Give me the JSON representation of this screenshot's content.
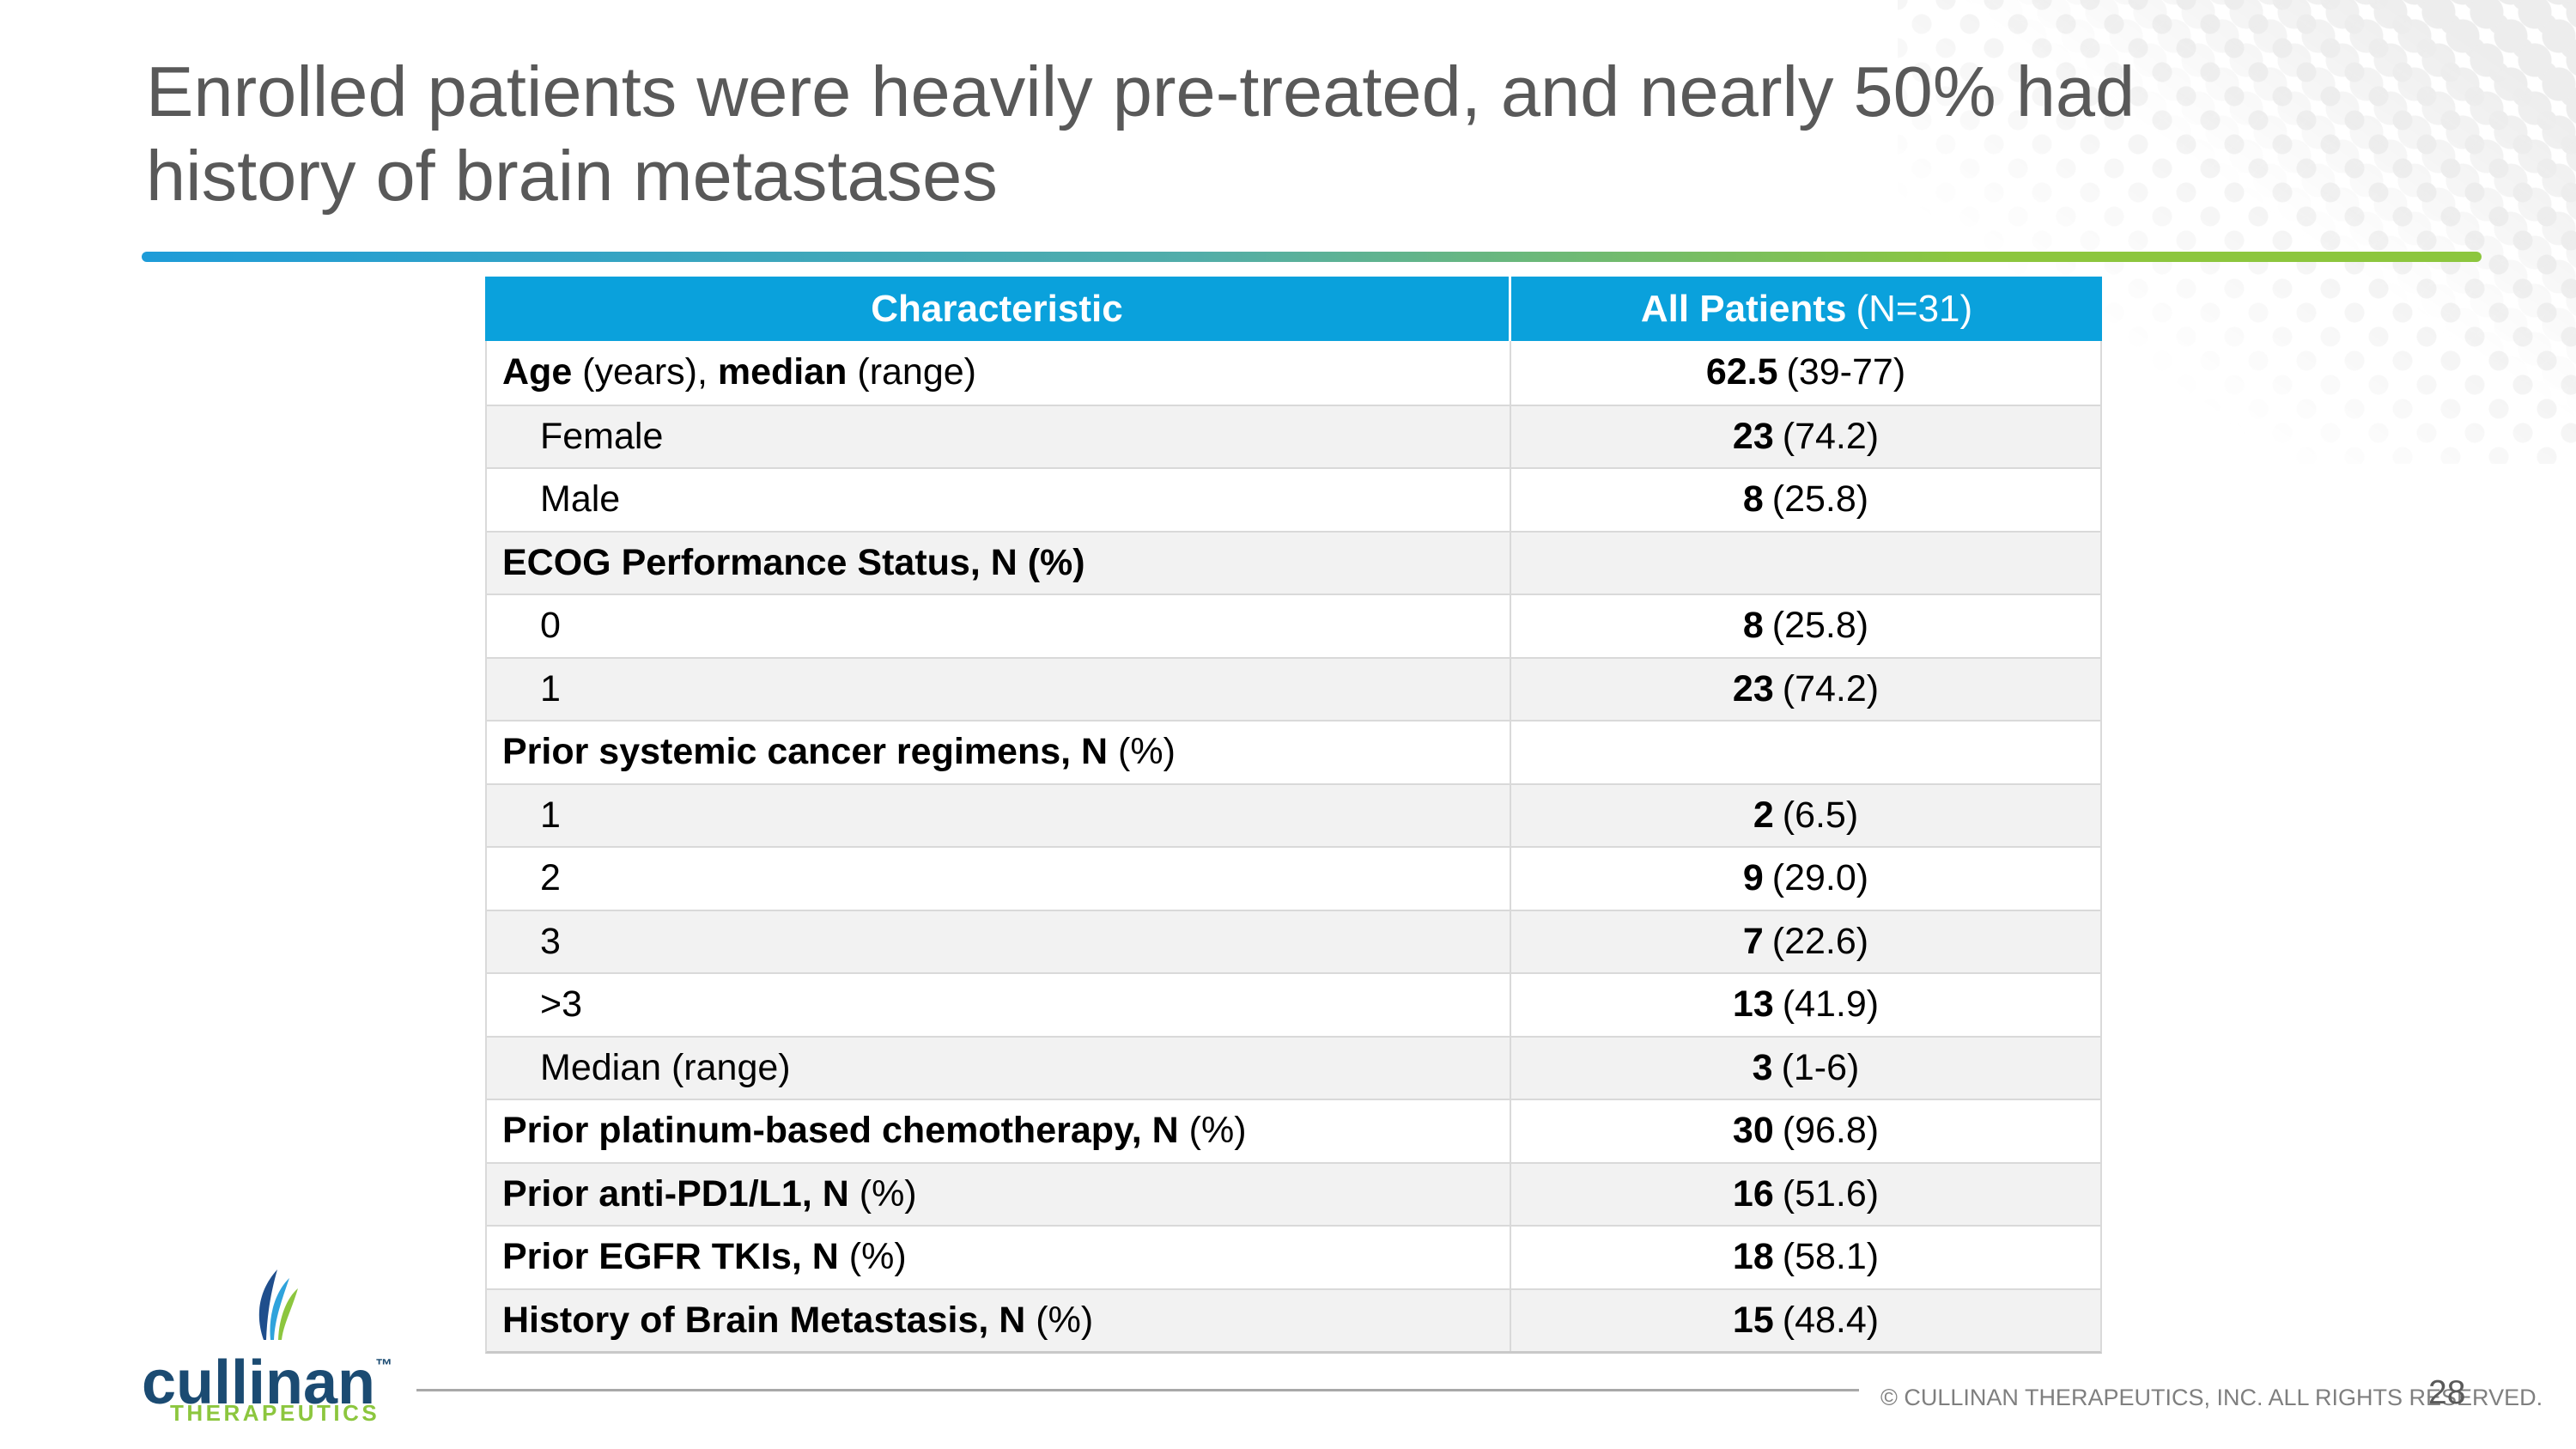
{
  "title": {
    "line1": "Enrolled patients were heavily pre-treated, and nearly 50% had",
    "line2": "history of brain metastases"
  },
  "colors": {
    "header_blue": "#0AA1DC",
    "alt_row": "#F2F2F2",
    "border_gray": "#D9D9D9",
    "title_gray": "#595959",
    "footer_gray": "#7F7F7F",
    "navy": "#1B4B72",
    "green": "#8CC63E",
    "grad_blue": "#1E9CD8",
    "dot_gray": "#EDEDED"
  },
  "table": {
    "header": {
      "col1": "Characteristic",
      "col2_bold": "All Patients",
      "col2_regular": "(N=31)"
    },
    "rows": [
      {
        "parts": [
          {
            "t": "Age",
            "b": true
          },
          {
            "t": " (years), ",
            "b": false
          },
          {
            "t": "median",
            "b": true
          },
          {
            "t": " (range)",
            "b": false
          }
        ],
        "num": "62.5",
        "paren": "(39-77)",
        "indent": false
      },
      {
        "parts": [
          {
            "t": "Female",
            "b": false
          }
        ],
        "num": "23",
        "paren": "(74.2)",
        "indent": true
      },
      {
        "parts": [
          {
            "t": "Male",
            "b": false
          }
        ],
        "num": "8",
        "paren": "(25.8)",
        "indent": true
      },
      {
        "parts": [
          {
            "t": "ECOG Performance Status, N (%)",
            "b": true
          }
        ],
        "num": "",
        "paren": "",
        "indent": false
      },
      {
        "parts": [
          {
            "t": "0",
            "b": false
          }
        ],
        "num": "8",
        "paren": "(25.8)",
        "indent": true
      },
      {
        "parts": [
          {
            "t": "1",
            "b": false
          }
        ],
        "num": "23",
        "paren": "(74.2)",
        "indent": true
      },
      {
        "parts": [
          {
            "t": "Prior systemic cancer regimens, N ",
            "b": true
          },
          {
            "t": "(%)",
            "b": false
          }
        ],
        "num": "",
        "paren": "",
        "indent": false
      },
      {
        "parts": [
          {
            "t": "1",
            "b": false
          }
        ],
        "num": "2",
        "paren": "(6.5)",
        "indent": true
      },
      {
        "parts": [
          {
            "t": "2",
            "b": false
          }
        ],
        "num": "9",
        "paren": "(29.0)",
        "indent": true
      },
      {
        "parts": [
          {
            "t": "3",
            "b": false
          }
        ],
        "num": "7",
        "paren": "(22.6)",
        "indent": true
      },
      {
        "parts": [
          {
            "t": ">3",
            "b": false
          }
        ],
        "num": "13",
        "paren": "(41.9)",
        "indent": true
      },
      {
        "parts": [
          {
            "t": "Median (range)",
            "b": false
          }
        ],
        "num": "3",
        "paren": "(1-6)",
        "indent": true
      },
      {
        "parts": [
          {
            "t": "Prior platinum-based chemotherapy, N ",
            "b": true
          },
          {
            "t": "(%)",
            "b": false
          }
        ],
        "num": "30",
        "paren": "(96.8)",
        "indent": false
      },
      {
        "parts": [
          {
            "t": "Prior anti-PD1/L1, N ",
            "b": true
          },
          {
            "t": "(%)",
            "b": false
          }
        ],
        "num": "16",
        "paren": "(51.6)",
        "indent": false
      },
      {
        "parts": [
          {
            "t": "Prior EGFR TKIs, N ",
            "b": true
          },
          {
            "t": "(%)",
            "b": false
          }
        ],
        "num": "18",
        "paren": "(58.1)",
        "indent": false
      },
      {
        "parts": [
          {
            "t": "History of Brain Metastasis, N ",
            "b": true
          },
          {
            "t": "(%)",
            "b": false
          }
        ],
        "num": "15",
        "paren": "(48.4)",
        "indent": false
      }
    ]
  },
  "logo": {
    "wordmark": "cullinan",
    "tm": "™",
    "subtext": "THERAPEUTICS"
  },
  "footer": {
    "copyright": "© CULLINAN THERAPEUTICS, INC. ALL RIGHTS RESERVED.",
    "page_number": "28"
  }
}
